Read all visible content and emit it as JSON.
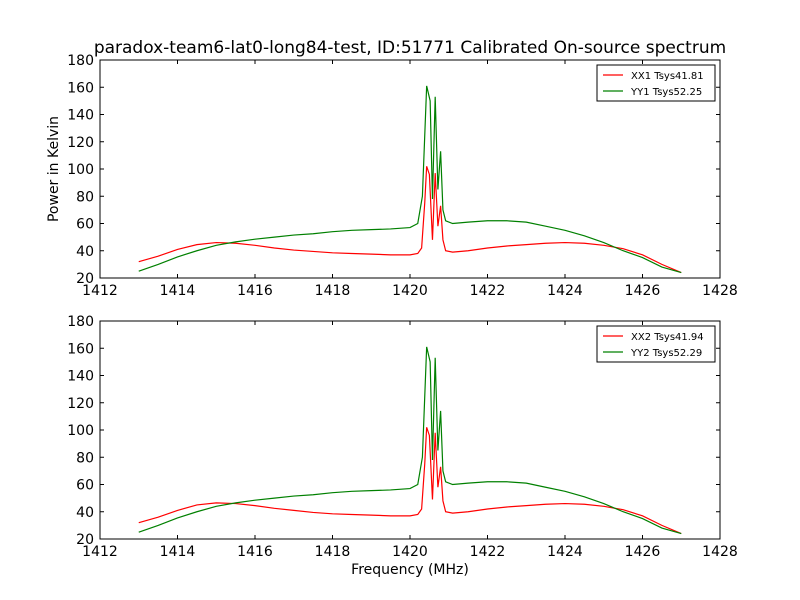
{
  "figure": {
    "title": "paradox-team6-lat0-long84-test, ID:51771 Calibrated On-source spectrum"
  },
  "chart_data": [
    {
      "type": "line",
      "ylabel": "Power in Kelvin",
      "xlabel": "",
      "xlim": [
        1412,
        1428
      ],
      "ylim": [
        20,
        180
      ],
      "xticks": [
        1412,
        1414,
        1416,
        1418,
        1420,
        1422,
        1424,
        1426,
        1428
      ],
      "yticks": [
        20,
        40,
        60,
        80,
        100,
        120,
        140,
        160,
        180
      ],
      "legend": "top-right",
      "series": [
        {
          "name": "XX1 Tsys41.81",
          "color": "#ff0000",
          "points": [
            [
              1413.0,
              32
            ],
            [
              1413.5,
              36
            ],
            [
              1414.0,
              41
            ],
            [
              1414.5,
              44.5
            ],
            [
              1415.0,
              46
            ],
            [
              1415.5,
              45.5
            ],
            [
              1416.0,
              44
            ],
            [
              1416.5,
              42
            ],
            [
              1417.0,
              40.5
            ],
            [
              1417.5,
              39.5
            ],
            [
              1418.0,
              38.5
            ],
            [
              1418.5,
              38
            ],
            [
              1419.0,
              37.5
            ],
            [
              1419.5,
              37
            ],
            [
              1420.0,
              37
            ],
            [
              1420.2,
              38
            ],
            [
              1420.3,
              42
            ],
            [
              1420.38,
              75
            ],
            [
              1420.43,
              102
            ],
            [
              1420.5,
              96
            ],
            [
              1420.58,
              48
            ],
            [
              1420.65,
              97
            ],
            [
              1420.72,
              58
            ],
            [
              1420.79,
              73
            ],
            [
              1420.85,
              48
            ],
            [
              1420.92,
              40
            ],
            [
              1421.1,
              39
            ],
            [
              1421.5,
              40
            ],
            [
              1422.0,
              42
            ],
            [
              1422.5,
              43.5
            ],
            [
              1423.0,
              44.5
            ],
            [
              1423.5,
              45.5
            ],
            [
              1424.0,
              46
            ],
            [
              1424.5,
              45.5
            ],
            [
              1425.0,
              44
            ],
            [
              1425.5,
              41.5
            ],
            [
              1426.0,
              37
            ],
            [
              1426.5,
              30
            ],
            [
              1427.0,
              24
            ]
          ]
        },
        {
          "name": "YY1 Tsys52.25",
          "color": "#008000",
          "points": [
            [
              1413.0,
              25
            ],
            [
              1413.5,
              30
            ],
            [
              1414.0,
              35.5
            ],
            [
              1414.5,
              40
            ],
            [
              1415.0,
              44
            ],
            [
              1415.5,
              46.5
            ],
            [
              1416.0,
              48.5
            ],
            [
              1416.5,
              50
            ],
            [
              1417.0,
              51.5
            ],
            [
              1417.5,
              52.5
            ],
            [
              1418.0,
              54
            ],
            [
              1418.5,
              55
            ],
            [
              1419.0,
              55.5
            ],
            [
              1419.5,
              56
            ],
            [
              1420.0,
              57
            ],
            [
              1420.2,
              60
            ],
            [
              1420.32,
              80
            ],
            [
              1420.43,
              161
            ],
            [
              1420.52,
              150
            ],
            [
              1420.58,
              78
            ],
            [
              1420.65,
              153
            ],
            [
              1420.72,
              85
            ],
            [
              1420.79,
              113
            ],
            [
              1420.85,
              70
            ],
            [
              1420.92,
              62
            ],
            [
              1421.1,
              60
            ],
            [
              1421.5,
              61
            ],
            [
              1422.0,
              62
            ],
            [
              1422.5,
              62
            ],
            [
              1423.0,
              61
            ],
            [
              1423.5,
              58
            ],
            [
              1424.0,
              55
            ],
            [
              1424.5,
              51
            ],
            [
              1425.0,
              46
            ],
            [
              1425.5,
              40
            ],
            [
              1426.0,
              35
            ],
            [
              1426.5,
              28
            ],
            [
              1427.0,
              24
            ]
          ]
        }
      ]
    },
    {
      "type": "line",
      "ylabel": "",
      "xlabel": "Frequency (MHz)",
      "xlim": [
        1412,
        1428
      ],
      "ylim": [
        20,
        180
      ],
      "xticks": [
        1412,
        1414,
        1416,
        1418,
        1420,
        1422,
        1424,
        1426,
        1428
      ],
      "yticks": [
        20,
        40,
        60,
        80,
        100,
        120,
        140,
        160,
        180
      ],
      "legend": "top-right",
      "series": [
        {
          "name": "XX2 Tsys41.94",
          "color": "#ff0000",
          "points": [
            [
              1413.0,
              32
            ],
            [
              1413.5,
              36
            ],
            [
              1414.0,
              41
            ],
            [
              1414.5,
              45
            ],
            [
              1415.0,
              46.5
            ],
            [
              1415.5,
              46
            ],
            [
              1416.0,
              44.5
            ],
            [
              1416.5,
              42.5
            ],
            [
              1417.0,
              41
            ],
            [
              1417.5,
              39.5
            ],
            [
              1418.0,
              38.5
            ],
            [
              1418.5,
              38
            ],
            [
              1419.0,
              37.5
            ],
            [
              1419.5,
              37
            ],
            [
              1420.0,
              37
            ],
            [
              1420.2,
              38
            ],
            [
              1420.3,
              42
            ],
            [
              1420.38,
              75
            ],
            [
              1420.43,
              102
            ],
            [
              1420.5,
              96
            ],
            [
              1420.58,
              49
            ],
            [
              1420.65,
              98
            ],
            [
              1420.72,
              58
            ],
            [
              1420.79,
              73
            ],
            [
              1420.85,
              48
            ],
            [
              1420.92,
              40
            ],
            [
              1421.1,
              39
            ],
            [
              1421.5,
              40
            ],
            [
              1422.0,
              42
            ],
            [
              1422.5,
              43.5
            ],
            [
              1423.0,
              44.5
            ],
            [
              1423.5,
              45.5
            ],
            [
              1424.0,
              46
            ],
            [
              1424.5,
              45.5
            ],
            [
              1425.0,
              44
            ],
            [
              1425.5,
              41.5
            ],
            [
              1426.0,
              37
            ],
            [
              1426.5,
              30
            ],
            [
              1427.0,
              24
            ]
          ]
        },
        {
          "name": "YY2 Tsys52.29",
          "color": "#008000",
          "points": [
            [
              1413.0,
              25
            ],
            [
              1413.5,
              30
            ],
            [
              1414.0,
              35.5
            ],
            [
              1414.5,
              40
            ],
            [
              1415.0,
              44
            ],
            [
              1415.5,
              46.5
            ],
            [
              1416.0,
              48.5
            ],
            [
              1416.5,
              50
            ],
            [
              1417.0,
              51.5
            ],
            [
              1417.5,
              52.5
            ],
            [
              1418.0,
              54
            ],
            [
              1418.5,
              55
            ],
            [
              1419.0,
              55.5
            ],
            [
              1419.5,
              56
            ],
            [
              1420.0,
              57
            ],
            [
              1420.2,
              60
            ],
            [
              1420.32,
              80
            ],
            [
              1420.43,
              161
            ],
            [
              1420.52,
              150
            ],
            [
              1420.58,
              78
            ],
            [
              1420.65,
              153
            ],
            [
              1420.72,
              85
            ],
            [
              1420.79,
              114
            ],
            [
              1420.85,
              70
            ],
            [
              1420.92,
              62
            ],
            [
              1421.1,
              60
            ],
            [
              1421.5,
              61
            ],
            [
              1422.0,
              62
            ],
            [
              1422.5,
              62
            ],
            [
              1423.0,
              61
            ],
            [
              1423.5,
              58
            ],
            [
              1424.0,
              55
            ],
            [
              1424.5,
              51
            ],
            [
              1425.0,
              46
            ],
            [
              1425.5,
              40
            ],
            [
              1426.0,
              35
            ],
            [
              1426.5,
              28
            ],
            [
              1427.0,
              24
            ]
          ]
        }
      ]
    }
  ]
}
